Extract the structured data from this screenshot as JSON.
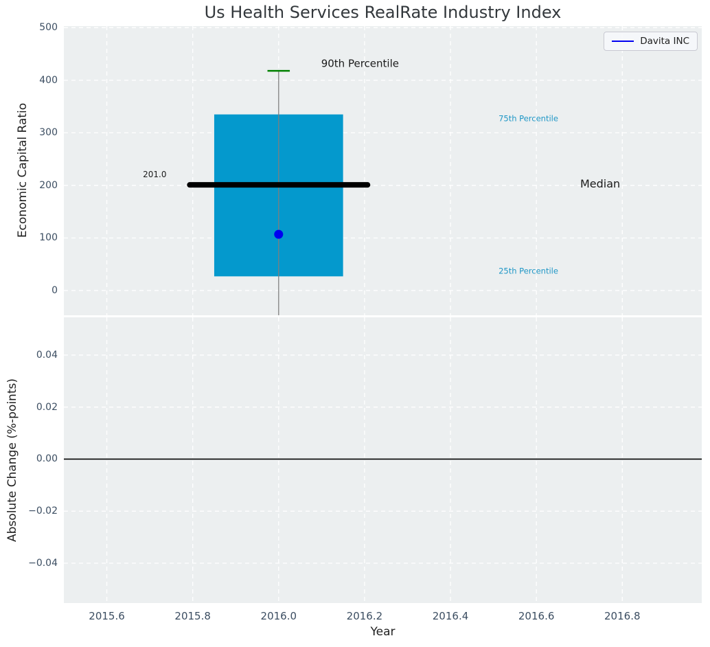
{
  "style": {
    "panel_bg": "#eceff0",
    "grid_color": "#ffffff",
    "tick_color": "#3b4d61",
    "title_color": "#33383c",
    "axis_label_color": "#1f1f1f"
  },
  "chart_data": [
    {
      "type": "box",
      "title": "Us Health Services RealRate Industry Index",
      "ylabel": "Economic Capital Ratio",
      "grid": true,
      "legend": {
        "position": "upper right",
        "entries": [
          {
            "label": "Davita INC",
            "color": "#0000f0"
          }
        ]
      },
      "xlim": [
        2015.5,
        2016.985
      ],
      "ylim": [
        -47,
        503
      ],
      "yticks": [
        0,
        100,
        200,
        300,
        400,
        500
      ],
      "ytick_labels": [
        "0",
        "100",
        "200",
        "300",
        "400",
        "500"
      ],
      "xticks": [
        2015.6,
        2015.8,
        2016.0,
        2016.2,
        2016.4,
        2016.6,
        2016.8
      ],
      "series": {
        "name": "Davita INC",
        "x": 2016.0,
        "company_value": 107,
        "median": 201.0,
        "q25": 27,
        "q75": 335,
        "p90": 418,
        "whisker_bottom": -47,
        "box_half_width": 0.15,
        "median_half_width": 0.207,
        "cap_half_width": 0.026
      },
      "annotations": [
        {
          "text": "90th Percentile",
          "x": 2016.099,
          "y": 431,
          "color": "#1a1a1a",
          "size": 15
        },
        {
          "text": "75th Percentile",
          "x": 2016.512,
          "y": 327,
          "color": "#2097c6",
          "size": 11.5
        },
        {
          "text": "Median",
          "x": 2016.702,
          "y": 202,
          "color": "#1a1a1a",
          "size": 16
        },
        {
          "text": "25th Percentile",
          "x": 2016.512,
          "y": 37,
          "color": "#2097c6",
          "size": 11.5
        },
        {
          "text": "201.0",
          "x": 2015.684,
          "y": 221,
          "color": "#1a1a1a",
          "size": 12
        }
      ],
      "colors": {
        "box": "#0499cd",
        "median": "#000000",
        "whisker": "#7f7f7f",
        "cap": "#008000",
        "marker": "#0000f0"
      }
    },
    {
      "type": "line",
      "ylabel": "Absolute Change (%-points)",
      "xlabel": "Year",
      "grid": true,
      "xlim": [
        2015.5,
        2016.985
      ],
      "ylim": [
        -0.0553,
        0.0545
      ],
      "yticks": [
        0.04,
        0.02,
        0.0,
        -0.02,
        -0.04
      ],
      "ytick_labels": [
        "0.04",
        "0.02",
        "0.00",
        "−0.02",
        "−0.04"
      ],
      "xticks": [
        2015.6,
        2015.8,
        2016.0,
        2016.2,
        2016.4,
        2016.6,
        2016.8
      ],
      "xtick_labels": [
        "2015.6",
        "2015.8",
        "2016.0",
        "2016.2",
        "2016.4",
        "2016.6",
        "2016.8"
      ],
      "zero_line": 0.0
    }
  ]
}
